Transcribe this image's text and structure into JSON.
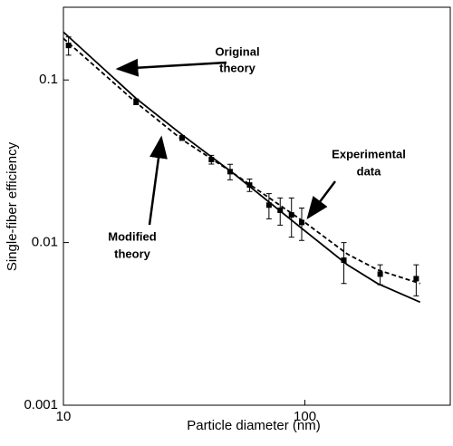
{
  "chart_data": {
    "type": "line",
    "x_label": "Particle diameter (nm)",
    "y_label": "Single-fiber efficiency",
    "log_x": true,
    "log_y": true,
    "xlim": [
      10,
      400
    ],
    "ylim": [
      0.001,
      0.28
    ],
    "xticks": [
      10,
      100
    ],
    "yticks": [
      0.001,
      0.01,
      0.1
    ],
    "series": [
      {
        "name": "Original theory",
        "color": "#000000",
        "style": "solid",
        "x": [
          10,
          20,
          31,
          50,
          100,
          150,
          200,
          300
        ],
        "values": [
          0.197,
          0.077,
          0.046,
          0.027,
          0.0118,
          0.0073,
          0.0056,
          0.0043
        ]
      },
      {
        "name": "Modified theory",
        "color": "#000000",
        "style": "dashed",
        "x": [
          10,
          20,
          31,
          50,
          100,
          150,
          200,
          300
        ],
        "values": [
          0.18,
          0.0726,
          0.043,
          0.027,
          0.0133,
          0.0085,
          0.0068,
          0.0056
        ]
      },
      {
        "name": "Experimental data",
        "color": "#000000",
        "style": "markers",
        "x": [
          10.5,
          20,
          31,
          41,
          49,
          59,
          71,
          79,
          88,
          97,
          145,
          205,
          289
        ],
        "values": [
          0.163,
          0.0735,
          0.044,
          0.0324,
          0.0273,
          0.0226,
          0.017,
          0.0158,
          0.0148,
          0.0133,
          0.0078,
          0.0064,
          0.006
        ],
        "errors": [
          0.021,
          0.003,
          0.0015,
          0.002,
          0.003,
          0.002,
          0.003,
          0.003,
          0.004,
          0.003,
          0.0022,
          0.0009,
          0.0013
        ]
      }
    ],
    "annotations": [
      "Original",
      "theory",
      "Experimental",
      "data",
      "Modified",
      "theory"
    ]
  }
}
